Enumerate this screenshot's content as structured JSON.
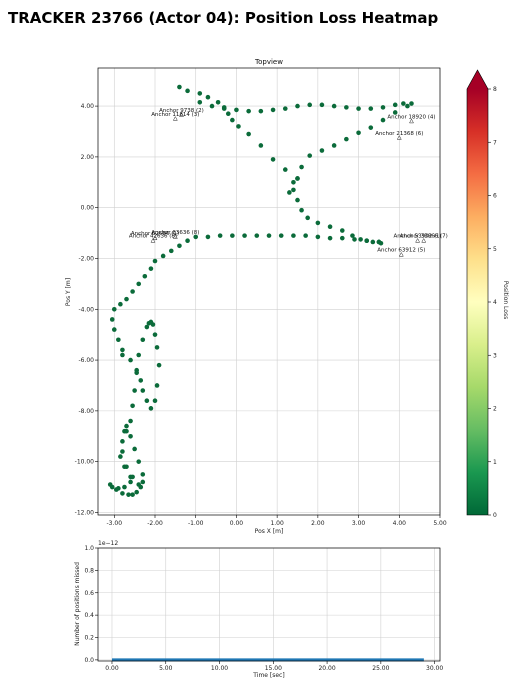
{
  "page": {
    "title": "TRACKER 23766 (Actor 04): Position Loss Heatmap"
  },
  "chart_data": [
    {
      "type": "scatter",
      "title": "Topview",
      "xlabel": "Pos X [m]",
      "ylabel": "Pos Y [m]",
      "xlim": [
        -3.4,
        5.0
      ],
      "ylim": [
        -12.1,
        5.5
      ],
      "xticks": [
        -3.0,
        -2.0,
        -1.0,
        0.0,
        1.0,
        2.0,
        3.0,
        4.0,
        5.0
      ],
      "yticks": [
        -12.0,
        -10.0,
        -8.0,
        -6.0,
        -4.0,
        -2.0,
        0.0,
        2.0,
        4.0
      ],
      "xtick_labels": [
        "-3.00",
        "-2.00",
        "-1.00",
        "0.00",
        "1.00",
        "2.00",
        "3.00",
        "4.00",
        "5.00"
      ],
      "ytick_labels": [
        "-12.00",
        "-10.00",
        "-8.00",
        "-6.00",
        "-4.00",
        "-2.00",
        "0.00",
        "2.00",
        "4.00"
      ],
      "grid": true,
      "point_color": "#0b6b3a",
      "anchors": [
        {
          "label": "Anchor 9738 (2)",
          "x": -1.35,
          "y": 3.65
        },
        {
          "label": "Anchor 11814 (3)",
          "x": -1.5,
          "y": 3.5
        },
        {
          "label": "Anchor 18920 (4)",
          "x": 4.3,
          "y": 3.4
        },
        {
          "label": "Anchor 21368 (6)",
          "x": 4.0,
          "y": 2.75
        },
        {
          "label": "Anchor 63636 (8)",
          "x": -1.5,
          "y": -1.15
        },
        {
          "label": "Anchor 62566 (1)",
          "x": -2.0,
          "y": -1.2
        },
        {
          "label": "Anchor 42636 (8)",
          "x": -2.05,
          "y": -1.3
        },
        {
          "label": "Anchor 33866 (7)",
          "x": 4.6,
          "y": -1.3
        },
        {
          "label": "Anchor 53902 (1)",
          "x": 4.45,
          "y": -1.3
        },
        {
          "label": "Anchor 63912 (5)",
          "x": 4.05,
          "y": -1.85
        }
      ],
      "segments": [
        {
          "x": [
            -1.4,
            -1.2,
            -0.9,
            -0.7,
            -0.45,
            -0.3,
            -0.2,
            -0.1,
            0.05,
            0.3,
            0.6,
            0.9,
            1.2,
            1.5
          ],
          "y": [
            4.75,
            4.6,
            4.5,
            4.35,
            4.15,
            3.95,
            3.7,
            3.45,
            3.2,
            2.9,
            2.45,
            1.9,
            1.5,
            1.15
          ]
        },
        {
          "x": [
            -0.9,
            -0.6,
            -0.3,
            0.0,
            0.3,
            0.6,
            0.9,
            1.2,
            1.5,
            1.8,
            2.1,
            2.4,
            2.7,
            3.0,
            3.3,
            3.6,
            3.9,
            4.1,
            4.3
          ],
          "y": [
            4.15,
            4.0,
            3.9,
            3.85,
            3.8,
            3.8,
            3.85,
            3.9,
            4.0,
            4.05,
            4.05,
            4.0,
            3.95,
            3.9,
            3.9,
            3.95,
            4.05,
            4.1,
            4.1
          ]
        },
        {
          "x": [
            4.2,
            3.9,
            3.6,
            3.3,
            3.0,
            2.7,
            2.4,
            2.1,
            1.8,
            1.6,
            1.4,
            1.3
          ],
          "y": [
            4.0,
            3.75,
            3.45,
            3.15,
            2.95,
            2.7,
            2.45,
            2.25,
            2.05,
            1.6,
            1.0,
            0.6
          ]
        },
        {
          "x": [
            1.5,
            1.4,
            1.5,
            1.6,
            1.75,
            2.0,
            2.3,
            2.6,
            2.85,
            3.05,
            3.2,
            3.35,
            3.5,
            3.55
          ],
          "y": [
            1.15,
            0.7,
            0.3,
            -0.1,
            -0.4,
            -0.6,
            -0.75,
            -0.9,
            -1.1,
            -1.25,
            -1.3,
            -1.35,
            -1.35,
            -1.4
          ]
        },
        {
          "x": [
            3.5,
            3.2,
            2.9,
            2.6,
            2.3,
            2.0,
            1.7,
            1.4,
            1.1,
            0.8,
            0.5,
            0.2,
            -0.1,
            -0.4,
            -0.7,
            -1.0,
            -1.2,
            -1.4,
            -1.6,
            -1.8,
            -2.0
          ],
          "y": [
            -1.35,
            -1.3,
            -1.25,
            -1.2,
            -1.2,
            -1.15,
            -1.1,
            -1.1,
            -1.1,
            -1.1,
            -1.1,
            -1.1,
            -1.1,
            -1.1,
            -1.15,
            -1.15,
            -1.3,
            -1.5,
            -1.7,
            -1.9,
            -2.1
          ]
        },
        {
          "x": [
            -2.1,
            -2.25,
            -2.4,
            -2.55,
            -2.7,
            -2.85,
            -3.0,
            -3.05,
            -3.0,
            -2.9,
            -2.8
          ],
          "y": [
            -2.4,
            -2.7,
            -3.0,
            -3.3,
            -3.6,
            -3.8,
            -4.0,
            -4.4,
            -4.8,
            -5.2,
            -5.6
          ]
        },
        {
          "x": [
            -2.8,
            -2.6,
            -2.45,
            -2.35,
            -2.3,
            -2.2,
            -2.1,
            -2.0,
            -1.95,
            -1.9,
            -1.95,
            -2.0,
            -2.05,
            -2.1,
            -2.15
          ],
          "y": [
            -5.8,
            -6.0,
            -6.4,
            -6.8,
            -7.2,
            -7.6,
            -7.9,
            -7.6,
            -7.0,
            -6.2,
            -5.5,
            -5.0,
            -4.6,
            -4.5,
            -4.55
          ]
        },
        {
          "x": [
            -2.2,
            -2.3,
            -2.4,
            -2.45,
            -2.5,
            -2.55,
            -2.6,
            -2.7,
            -2.8,
            -2.85,
            -2.75,
            -2.6
          ],
          "y": [
            -4.7,
            -5.2,
            -5.8,
            -6.5,
            -7.2,
            -7.8,
            -8.4,
            -8.8,
            -9.2,
            -9.8,
            -10.2,
            -10.6
          ]
        },
        {
          "x": [
            -2.6,
            -2.75,
            -2.9,
            -3.05,
            -3.1,
            -2.95,
            -2.8,
            -2.65,
            -2.55,
            -2.45,
            -2.35,
            -2.3
          ],
          "y": [
            -10.8,
            -11.0,
            -11.05,
            -11.0,
            -10.9,
            -11.1,
            -11.25,
            -11.3,
            -11.3,
            -11.2,
            -11.0,
            -10.8
          ]
        },
        {
          "x": [
            -2.3,
            -2.4,
            -2.5,
            -2.6,
            -2.7,
            -2.75,
            -2.8,
            -2.7,
            -2.55,
            -2.4
          ],
          "y": [
            -10.5,
            -10.0,
            -9.5,
            -9.0,
            -8.6,
            -8.8,
            -9.6,
            -10.2,
            -10.6,
            -10.9
          ]
        }
      ],
      "colorbar": {
        "label": "Position Loss",
        "min": 0,
        "max": 8,
        "ticks": [
          0,
          1,
          2,
          3,
          4,
          5,
          6,
          7,
          8
        ],
        "tick_labels": [
          "0",
          "1",
          "2",
          "3",
          "4",
          "5",
          "6",
          "7",
          "8"
        ],
        "colors": [
          "#006837",
          "#1a9850",
          "#66bd63",
          "#a6d96a",
          "#d9ef8b",
          "#ffffbf",
          "#fee08b",
          "#fdae61",
          "#f46d43",
          "#d73027",
          "#a50026"
        ]
      }
    },
    {
      "type": "line",
      "xlabel": "Time [sec]",
      "ylabel": "Number of positions missed",
      "scale_label": "1e−12",
      "xlim": [
        -1.3,
        30.5
      ],
      "ylim": [
        -0.01,
        1.0
      ],
      "xticks": [
        0,
        5,
        10,
        15,
        20,
        25,
        30
      ],
      "xtick_labels": [
        "0.00",
        "5.00",
        "10.00",
        "15.00",
        "20.00",
        "25.00",
        "30.00"
      ],
      "yticks": [
        0.0,
        0.2,
        0.4,
        0.6,
        0.8,
        1.0
      ],
      "ytick_labels": [
        "0.0",
        "0.2",
        "0.4",
        "0.6",
        "0.8",
        "1.0"
      ],
      "grid": true,
      "line_color": "#1f77b4",
      "series": [
        {
          "x": [
            0,
            5,
            10,
            15,
            20,
            25,
            29
          ],
          "values": [
            0,
            0,
            0,
            0,
            0,
            0,
            0
          ]
        }
      ]
    }
  ]
}
